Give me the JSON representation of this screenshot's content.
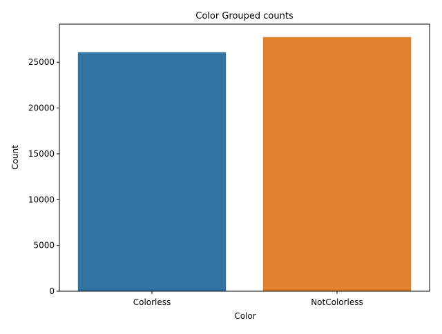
{
  "chart_data": {
    "type": "bar",
    "title": "Color Grouped counts",
    "xlabel": "Color",
    "ylabel": "Count",
    "categories": [
      "Colorless",
      "NotColorless"
    ],
    "values": [
      26100,
      27750
    ],
    "colors": [
      "#3274a1",
      "#e1812c"
    ],
    "ylim": [
      0,
      29160
    ],
    "yticks": [
      0,
      5000,
      10000,
      15000,
      20000,
      25000
    ],
    "grid": false,
    "legend": "none"
  }
}
